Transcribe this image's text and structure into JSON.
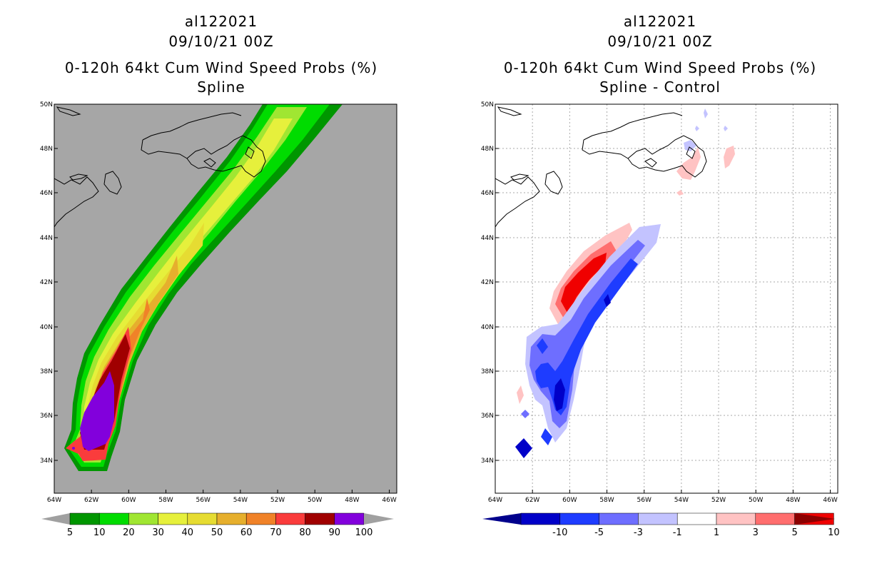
{
  "left_panel": {
    "storm_id": "al122021",
    "datetime": "09/10/21 00Z",
    "product": "0-120h 64kt Cum Wind Speed Probs (%)",
    "subtitle": "Spline",
    "lat_ticks": [
      "34N",
      "36N",
      "38N",
      "40N",
      "42N",
      "44N",
      "46N",
      "48N",
      "50N"
    ],
    "lon_ticks": [
      "64W",
      "62W",
      "60W",
      "58W",
      "56W",
      "54W",
      "52W",
      "50W",
      "48W",
      "46W"
    ],
    "colorbar": {
      "labels": [
        "5",
        "10",
        "20",
        "30",
        "40",
        "50",
        "60",
        "70",
        "80",
        "90",
        "100"
      ],
      "colors": [
        "#009600",
        "#00dc00",
        "#a0e632",
        "#e6f03c",
        "#e6dc32",
        "#e6af2d",
        "#f08228",
        "#fa3c3c",
        "#a00000",
        "#8200dc"
      ],
      "arrow_color": "#a0a0a0"
    },
    "background_color": "#a6a6a6"
  },
  "right_panel": {
    "storm_id": "al122021",
    "datetime": "09/10/21 00Z",
    "product": "0-120h 64kt Cum Wind Speed Probs (%)",
    "subtitle": "Spline - Control",
    "lat_ticks": [
      "34N",
      "36N",
      "38N",
      "40N",
      "42N",
      "44N",
      "46N",
      "48N",
      "50N"
    ],
    "lon_ticks": [
      "64W",
      "62W",
      "60W",
      "58W",
      "56W",
      "54W",
      "52W",
      "50W",
      "48W",
      "46W"
    ],
    "colorbar": {
      "labels": [
        "-10",
        "-5",
        "-3",
        "-1",
        "1",
        "3",
        "5",
        "10"
      ],
      "colors": [
        "#0000c8",
        "#1e3cff",
        "#6e6eff",
        "#c3c3ff",
        "#ffffff",
        "#ffc3c3",
        "#ff6e6e",
        "#f00000"
      ],
      "low_arrow": "#00008c",
      "high_arrow": "#8c0000"
    }
  }
}
